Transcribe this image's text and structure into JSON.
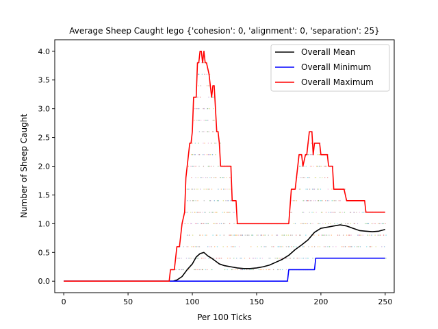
{
  "chart_data": {
    "type": "line",
    "title": "Average Sheep Caught lego {'cohesion': 0, 'alignment': 0, 'separation': 25}",
    "xlabel": "Per 100 Ticks",
    "ylabel": "Number of Sheep Caught",
    "xlim": [
      -7,
      257
    ],
    "ylim": [
      -0.2,
      4.2
    ],
    "xticks": [
      0,
      50,
      100,
      150,
      200,
      250
    ],
    "yticks": [
      0.0,
      0.5,
      1.0,
      1.5,
      2.0,
      2.5,
      3.0,
      3.5,
      4.0
    ],
    "grid": false,
    "legend_position": "top-right",
    "series": [
      {
        "name": "Overall Mean",
        "color": "#000000",
        "points": [
          [
            0,
            0
          ],
          [
            85,
            0
          ],
          [
            88,
            0.02
          ],
          [
            92,
            0.08
          ],
          [
            96,
            0.2
          ],
          [
            100,
            0.3
          ],
          [
            103,
            0.42
          ],
          [
            106,
            0.48
          ],
          [
            109,
            0.5
          ],
          [
            112,
            0.44
          ],
          [
            115,
            0.4
          ],
          [
            118,
            0.35
          ],
          [
            121,
            0.3
          ],
          [
            125,
            0.27
          ],
          [
            130,
            0.25
          ],
          [
            135,
            0.23
          ],
          [
            140,
            0.22
          ],
          [
            145,
            0.22
          ],
          [
            150,
            0.23
          ],
          [
            155,
            0.25
          ],
          [
            160,
            0.28
          ],
          [
            165,
            0.33
          ],
          [
            170,
            0.38
          ],
          [
            175,
            0.45
          ],
          [
            180,
            0.55
          ],
          [
            185,
            0.63
          ],
          [
            190,
            0.72
          ],
          [
            195,
            0.85
          ],
          [
            200,
            0.92
          ],
          [
            205,
            0.94
          ],
          [
            210,
            0.96
          ],
          [
            215,
            0.98
          ],
          [
            220,
            0.96
          ],
          [
            225,
            0.92
          ],
          [
            230,
            0.88
          ],
          [
            235,
            0.87
          ],
          [
            240,
            0.86
          ],
          [
            245,
            0.87
          ],
          [
            250,
            0.9
          ]
        ]
      },
      {
        "name": "Overall Minimum",
        "color": "#0000ff",
        "points": [
          [
            0,
            0
          ],
          [
            174,
            0
          ],
          [
            175,
            0.2
          ],
          [
            195,
            0.2
          ],
          [
            196,
            0.4
          ],
          [
            250,
            0.4
          ]
        ]
      },
      {
        "name": "Overall Maximum",
        "color": "#ff0000",
        "points": [
          [
            0,
            0
          ],
          [
            82,
            0
          ],
          [
            83,
            0.2
          ],
          [
            86,
            0.2
          ],
          [
            87,
            0.4
          ],
          [
            88,
            0.6
          ],
          [
            90,
            0.6
          ],
          [
            92,
            1.0
          ],
          [
            94,
            1.2
          ],
          [
            95,
            1.8
          ],
          [
            96,
            2.0
          ],
          [
            98,
            2.4
          ],
          [
            99,
            2.4
          ],
          [
            100,
            2.6
          ],
          [
            101,
            3.2
          ],
          [
            103,
            3.2
          ],
          [
            104,
            3.8
          ],
          [
            105,
            3.8
          ],
          [
            106,
            4.0
          ],
          [
            107,
            4.0
          ],
          [
            108,
            3.8
          ],
          [
            109,
            4.0
          ],
          [
            110,
            3.8
          ],
          [
            111,
            3.8
          ],
          [
            113,
            3.6
          ],
          [
            115,
            3.2
          ],
          [
            116,
            3.4
          ],
          [
            117,
            3.4
          ],
          [
            118,
            3.0
          ],
          [
            119,
            2.6
          ],
          [
            120,
            2.6
          ],
          [
            121,
            2.4
          ],
          [
            122,
            2.0
          ],
          [
            130,
            2.0
          ],
          [
            131,
            1.4
          ],
          [
            134,
            1.4
          ],
          [
            135,
            1.0
          ],
          [
            175,
            1.0
          ],
          [
            177,
            1.6
          ],
          [
            180,
            1.6
          ],
          [
            181,
            1.8
          ],
          [
            183,
            2.2
          ],
          [
            185,
            2.2
          ],
          [
            186,
            2.0
          ],
          [
            188,
            2.2
          ],
          [
            189,
            2.2
          ],
          [
            191,
            2.6
          ],
          [
            193,
            2.6
          ],
          [
            194,
            2.2
          ],
          [
            195,
            2.4
          ],
          [
            199,
            2.4
          ],
          [
            200,
            2.2
          ],
          [
            205,
            2.2
          ],
          [
            206,
            2.0
          ],
          [
            209,
            2.0
          ],
          [
            210,
            1.6
          ],
          [
            218,
            1.6
          ],
          [
            220,
            1.4
          ],
          [
            234,
            1.4
          ],
          [
            235,
            1.2
          ],
          [
            250,
            1.2
          ]
        ]
      }
    ]
  }
}
